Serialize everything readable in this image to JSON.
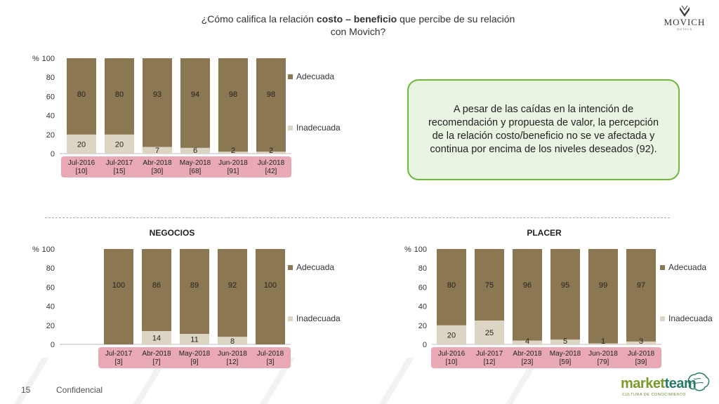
{
  "header": {
    "title_pre": "¿Cómo califica la relación ",
    "title_bold": "costo – beneficio",
    "title_post": " que percibe de su relación",
    "title_line2": "con Movich?"
  },
  "brand": {
    "name": "MOVICH",
    "sub": "HOTELS"
  },
  "callout": {
    "text": "A pesar de las caídas en la intención de recomendación y propuesta de valor, la percepción de la relación costo/beneficio no se ve afectada y continua por encima de los niveles deseados (92)."
  },
  "footer": {
    "page": "15",
    "confidential": "Confidencial"
  },
  "marketteam": {
    "part1": "market",
    "part2": "team",
    "tagline": "CULTURA DE CONOCIMIENTO"
  },
  "colors": {
    "adecuada": "#8b7751",
    "inadecuada": "#ddd5c4",
    "label_band": "#e8a9b4",
    "callout_border": "#6fb83a",
    "callout_fill": "#e9f4e2"
  },
  "chart_data": [
    {
      "id": "general",
      "type": "bar",
      "stacked": true,
      "title": "",
      "y_unit": "%",
      "ylim": [
        0,
        100
      ],
      "yticks": [
        0,
        20,
        40,
        60,
        80,
        100
      ],
      "categories": [
        "Jul-2016",
        "Jul-2017",
        "Abr-2018",
        "May-2018",
        "Jun-2018",
        "Jul-2018"
      ],
      "bases": [
        "[10]",
        "[15]",
        "[30]",
        "[68]",
        "[91]",
        "[42]"
      ],
      "series": [
        {
          "name": "Inadecuada",
          "values": [
            20,
            20,
            7,
            6,
            2,
            2
          ]
        },
        {
          "name": "Adecuada",
          "values": [
            80,
            80,
            93,
            94,
            98,
            98
          ]
        }
      ],
      "legend": "right"
    },
    {
      "id": "negocios",
      "type": "bar",
      "stacked": true,
      "title": "NEGOCIOS",
      "y_unit": "%",
      "ylim": [
        0,
        100
      ],
      "yticks": [
        0,
        20,
        40,
        60,
        80,
        100
      ],
      "categories": [
        "Jul-2017",
        "Abr-2018",
        "May-2018",
        "Jun-2018",
        "Jul-2018"
      ],
      "bases": [
        "[3]",
        "[7]",
        "[9]",
        "[12]",
        "[3]"
      ],
      "series": [
        {
          "name": "Inadecuada",
          "values": [
            null,
            14,
            11,
            8,
            null
          ]
        },
        {
          "name": "Adecuada",
          "values": [
            100,
            86,
            89,
            92,
            100
          ]
        }
      ],
      "legend": "right"
    },
    {
      "id": "placer",
      "type": "bar",
      "stacked": true,
      "title": "PLACER",
      "y_unit": "%",
      "ylim": [
        0,
        100
      ],
      "yticks": [
        0,
        20,
        40,
        60,
        80,
        100
      ],
      "categories": [
        "Jul-2016",
        "Jul-2017",
        "Abr-2018",
        "May-2018",
        "Jun-2018",
        "Jul-2018"
      ],
      "bases": [
        "[10]",
        "[12]",
        "[23]",
        "[59]",
        "[79]",
        "[39]"
      ],
      "series": [
        {
          "name": "Inadecuada",
          "values": [
            20,
            25,
            4,
            5,
            1,
            3
          ]
        },
        {
          "name": "Adecuada",
          "values": [
            80,
            75,
            96,
            95,
            99,
            97
          ]
        }
      ],
      "legend": "right"
    }
  ]
}
